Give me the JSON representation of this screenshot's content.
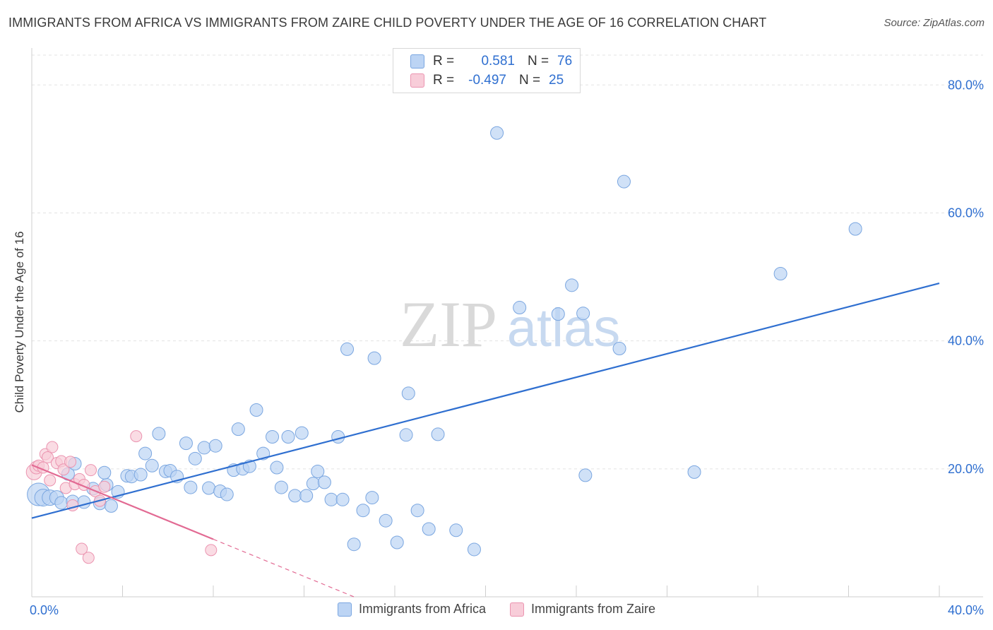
{
  "title": "IMMIGRANTS FROM AFRICA VS IMMIGRANTS FROM ZAIRE CHILD POVERTY UNDER THE AGE OF 16 CORRELATION CHART",
  "source": "Source: ZipAtlas.com",
  "watermark": {
    "zip": "ZIP",
    "atlas": "atlas"
  },
  "stats": [
    {
      "r_label": "R =",
      "r_value": "0.581",
      "n_label": "N =",
      "n_value": "76",
      "color": "#bcd4f4"
    },
    {
      "r_label": "R =",
      "r_value": "-0.497",
      "n_label": "N =",
      "n_value": "25",
      "color": "#f8cdd9"
    }
  ],
  "legend": [
    {
      "label": "Immigrants from Africa",
      "color": "#bcd4f4"
    },
    {
      "label": "Immigrants from Zaire",
      "color": "#f8cdd9"
    }
  ],
  "chart_data": {
    "type": "scatter",
    "ylabel": "Child Poverty Under the Age of 16",
    "xlim": [
      0,
      40
    ],
    "ylim": [
      0,
      85
    ],
    "x_tick_labels": [
      "0.0%",
      "40.0%"
    ],
    "y_ticks": [
      20,
      40,
      60,
      80
    ],
    "y_tick_labels": [
      "20.0%",
      "40.0%",
      "60.0%",
      "80.0%"
    ],
    "series": [
      {
        "name": "Immigrants from Africa",
        "color": "#7aa6e0",
        "fill": "#bcd4f4",
        "trend": {
          "x": [
            0,
            40
          ],
          "y": [
            12.3,
            49.0
          ],
          "color": "#2f6fd0"
        },
        "points": [
          [
            0.3,
            16.0,
            16
          ],
          [
            0.5,
            15.5,
            12
          ],
          [
            0.8,
            15.5,
            11
          ],
          [
            1.1,
            15.5,
            10
          ],
          [
            1.3,
            14.7,
            9
          ],
          [
            1.6,
            19.2,
            9
          ],
          [
            1.9,
            20.8,
            9
          ],
          [
            1.8,
            14.9,
            9
          ],
          [
            2.3,
            14.8,
            9
          ],
          [
            2.7,
            16.9,
            9
          ],
          [
            3.0,
            14.6,
            9
          ],
          [
            3.3,
            17.5,
            9
          ],
          [
            3.2,
            19.4,
            9
          ],
          [
            3.5,
            14.2,
            9
          ],
          [
            3.8,
            16.4,
            9
          ],
          [
            4.2,
            18.9,
            9
          ],
          [
            4.4,
            18.8,
            9
          ],
          [
            4.8,
            19.1,
            9
          ],
          [
            5.0,
            22.4,
            9
          ],
          [
            5.3,
            20.5,
            9
          ],
          [
            5.6,
            25.5,
            9
          ],
          [
            5.9,
            19.6,
            9
          ],
          [
            6.1,
            19.7,
            9
          ],
          [
            6.4,
            18.8,
            9
          ],
          [
            6.8,
            24.0,
            9
          ],
          [
            7.0,
            17.1,
            9
          ],
          [
            7.2,
            21.6,
            9
          ],
          [
            7.6,
            23.3,
            9
          ],
          [
            7.8,
            17.0,
            9
          ],
          [
            8.1,
            23.6,
            9
          ],
          [
            8.3,
            16.5,
            9
          ],
          [
            8.6,
            16.0,
            9
          ],
          [
            8.9,
            19.8,
            9
          ],
          [
            9.1,
            26.2,
            9
          ],
          [
            9.3,
            20.0,
            9
          ],
          [
            9.6,
            20.4,
            9
          ],
          [
            9.9,
            29.2,
            9
          ],
          [
            10.2,
            22.4,
            9
          ],
          [
            10.6,
            25.0,
            9
          ],
          [
            10.8,
            20.2,
            9
          ],
          [
            11.0,
            17.1,
            9
          ],
          [
            11.3,
            25.0,
            9
          ],
          [
            11.6,
            15.8,
            9
          ],
          [
            11.9,
            25.6,
            9
          ],
          [
            12.1,
            15.8,
            9
          ],
          [
            12.4,
            17.7,
            9
          ],
          [
            12.6,
            19.6,
            9
          ],
          [
            12.9,
            17.9,
            9
          ],
          [
            13.2,
            15.2,
            9
          ],
          [
            13.5,
            25.0,
            9
          ],
          [
            13.7,
            15.2,
            9
          ],
          [
            13.9,
            38.7,
            9
          ],
          [
            14.2,
            8.2,
            9
          ],
          [
            14.6,
            13.5,
            9
          ],
          [
            15.0,
            15.5,
            9
          ],
          [
            15.1,
            37.3,
            9
          ],
          [
            15.6,
            11.9,
            9
          ],
          [
            16.1,
            8.5,
            9
          ],
          [
            16.5,
            25.3,
            9
          ],
          [
            16.6,
            31.8,
            9
          ],
          [
            17.0,
            13.5,
            9
          ],
          [
            17.5,
            10.6,
            9
          ],
          [
            17.9,
            25.4,
            9
          ],
          [
            18.7,
            10.4,
            9
          ],
          [
            19.5,
            7.4,
            9
          ],
          [
            20.5,
            72.5,
            9
          ],
          [
            21.5,
            45.2,
            9
          ],
          [
            23.2,
            44.2,
            9
          ],
          [
            23.8,
            48.7,
            9
          ],
          [
            24.3,
            44.3,
            9
          ],
          [
            24.4,
            19.0,
            9
          ],
          [
            25.9,
            38.8,
            9
          ],
          [
            26.1,
            64.9,
            9
          ],
          [
            29.2,
            19.5,
            9
          ],
          [
            33.0,
            50.5,
            9
          ],
          [
            36.3,
            57.5,
            9
          ]
        ]
      },
      {
        "name": "Immigrants from Zaire",
        "color": "#eb94b0",
        "fill": "#f8cdd9",
        "trend": {
          "x": [
            0,
            8.0
          ],
          "y": [
            20.6,
            9.0
          ],
          "color": "#e26a93"
        },
        "trend_dashed": {
          "x": [
            8.0,
            14.2
          ],
          "y": [
            9.0,
            0
          ],
          "color": "#e26a93"
        },
        "points": [
          [
            0.1,
            19.5,
            11
          ],
          [
            0.2,
            20.2,
            9
          ],
          [
            0.3,
            20.5,
            8
          ],
          [
            0.5,
            20.2,
            8
          ],
          [
            0.6,
            22.3,
            8
          ],
          [
            0.7,
            21.8,
            8
          ],
          [
            0.8,
            18.2,
            8
          ],
          [
            0.9,
            23.4,
            8
          ],
          [
            1.1,
            20.9,
            8
          ],
          [
            1.3,
            21.2,
            8
          ],
          [
            1.4,
            19.9,
            8
          ],
          [
            1.5,
            17.0,
            8
          ],
          [
            1.7,
            21.1,
            8
          ],
          [
            1.8,
            14.3,
            8
          ],
          [
            1.9,
            17.6,
            8
          ],
          [
            2.1,
            18.4,
            8
          ],
          [
            2.2,
            7.5,
            8
          ],
          [
            2.3,
            17.5,
            8
          ],
          [
            2.5,
            6.1,
            8
          ],
          [
            2.6,
            19.8,
            8
          ],
          [
            2.8,
            16.5,
            8
          ],
          [
            3.0,
            15.0,
            8
          ],
          [
            3.2,
            17.2,
            8
          ],
          [
            4.6,
            25.1,
            8
          ],
          [
            7.9,
            7.3,
            8
          ]
        ]
      }
    ]
  }
}
